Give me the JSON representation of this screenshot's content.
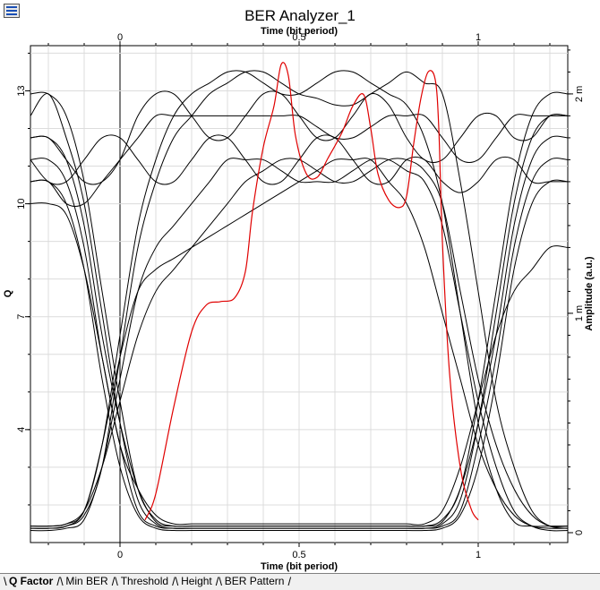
{
  "window": {
    "title": "BER Analyzer_1",
    "icon": "window-menu-icon"
  },
  "tabs": [
    {
      "label": "Q Factor",
      "active": true
    },
    {
      "label": "Min BER",
      "active": false
    },
    {
      "label": "Threshold",
      "active": false
    },
    {
      "label": "Height",
      "active": false
    },
    {
      "label": "BER Pattern",
      "active": false
    }
  ],
  "chart_data": {
    "type": "line",
    "title": "BER Analyzer_1",
    "xlabel": "Time (bit period)",
    "x2label": "Time (bit period)",
    "ylabel": "Q",
    "y2label": "Amplitude (a.u.)",
    "xlim": [
      -0.25,
      1.25
    ],
    "ylim": [
      1,
      14.2
    ],
    "y2lim": [
      -4.5e-05,
      0.00222
    ],
    "xticks": [
      0,
      0.5,
      1
    ],
    "xtick_labels": [
      "0",
      "0.5",
      "1"
    ],
    "yticks": [
      4,
      7,
      10,
      13
    ],
    "ytick_labels": [
      "4",
      "7",
      "10",
      "13"
    ],
    "y2ticks": [
      0,
      0.001,
      0.002
    ],
    "y2tick_labels": [
      "0",
      "1 m",
      "2 m"
    ],
    "grid": true,
    "series": [
      {
        "axis": "q",
        "color": "#e00000",
        "x": [
          0.07,
          0.1,
          0.15,
          0.2,
          0.24,
          0.28,
          0.32,
          0.35,
          0.37,
          0.4,
          0.43,
          0.45,
          0.47,
          0.49,
          0.52,
          0.55,
          0.58,
          0.62,
          0.65,
          0.68,
          0.7,
          0.72,
          0.75,
          0.78,
          0.8,
          0.82,
          0.84,
          0.86,
          0.88,
          0.89,
          0.9,
          0.92,
          0.95,
          0.98,
          1.0
        ],
        "y": [
          1.6,
          2.3,
          4.6,
          6.6,
          7.3,
          7.4,
          7.5,
          8.2,
          9.8,
          11.5,
          12.6,
          13.7,
          13.4,
          11.8,
          10.8,
          10.7,
          11.2,
          11.9,
          12.6,
          12.9,
          12.0,
          10.8,
          10.1,
          9.9,
          10.2,
          11.6,
          12.8,
          13.5,
          13.3,
          12.0,
          9.0,
          5.5,
          3.0,
          1.9,
          1.6
        ]
      }
    ],
    "eye_traces": {
      "axis": "amplitude",
      "color": "#000000",
      "x_grid": [
        -0.25,
        -0.2,
        -0.15,
        -0.1,
        -0.05,
        0.0,
        0.05,
        0.1,
        0.15,
        0.2,
        0.25,
        0.3,
        0.35,
        0.4,
        0.45,
        0.5,
        0.55,
        0.6,
        0.65,
        0.7,
        0.75,
        0.8,
        0.85,
        0.9,
        0.95,
        1.0,
        1.05,
        1.1,
        1.15,
        1.2,
        1.25
      ],
      "note": "",
      "values": [
        [
          0.002,
          0.002,
          0.0019,
          0.0016,
          0.0011,
          0.0006,
          0.0002,
          6e-05,
          3e-05,
          3e-05,
          3e-05,
          3e-05,
          3e-05,
          3e-05,
          3e-05,
          3e-05,
          3e-05,
          3e-05,
          3e-05,
          3e-05,
          3e-05,
          3e-05,
          3e-05,
          6e-05,
          0.0002,
          0.0006,
          0.0011,
          0.0016,
          0.0019,
          0.002,
          0.002
        ],
        [
          0.0019,
          0.002,
          0.0018,
          0.0015,
          0.001,
          0.0005,
          0.00015,
          4e-05,
          2e-05,
          2e-05,
          2e-05,
          2e-05,
          2e-05,
          2e-05,
          2e-05,
          2e-05,
          2e-05,
          2e-05,
          2e-05,
          2e-05,
          2e-05,
          2e-05,
          2e-05,
          4e-05,
          0.00015,
          0.0005,
          0.001,
          0.0015,
          0.0018,
          0.0019,
          0.0019
        ],
        [
          3e-05,
          3e-05,
          4e-05,
          0.0001,
          0.0004,
          0.0009,
          0.0014,
          0.0017,
          0.0019,
          0.002,
          0.00205,
          0.0021,
          0.0021,
          0.00205,
          0.002,
          0.002,
          0.00205,
          0.0021,
          0.0021,
          0.00205,
          0.002,
          0.00195,
          0.0018,
          0.0015,
          0.001,
          0.0005,
          0.0002,
          5e-05,
          3e-05,
          3e-05,
          3e-05
        ],
        [
          2e-05,
          2e-05,
          3e-05,
          8e-05,
          0.0003,
          0.0008,
          0.0013,
          0.0016,
          0.0018,
          0.0019,
          0.002,
          0.00205,
          0.0021,
          0.0021,
          0.00205,
          0.002,
          0.00198,
          0.00195,
          0.00195,
          0.002,
          0.00205,
          0.0021,
          0.00205,
          0.002,
          0.0016,
          0.0011,
          0.0006,
          0.0003,
          0.0001,
          3e-05,
          2e-05
        ],
        [
          0.0018,
          0.0018,
          0.0017,
          0.0016,
          0.0016,
          0.0017,
          0.0019,
          0.002,
          0.002,
          0.0019,
          0.0018,
          0.0018,
          0.0019,
          0.002,
          0.002,
          0.0019,
          0.0018,
          0.0018,
          0.0019,
          0.002,
          0.00195,
          0.0018,
          0.0017,
          0.0017,
          0.0018,
          0.0019,
          0.0019,
          0.0018,
          0.0018,
          0.0019,
          0.0019
        ],
        [
          0.0017,
          0.0016,
          0.0016,
          0.0017,
          0.0018,
          0.0018,
          0.0017,
          0.0016,
          0.0016,
          0.0017,
          0.0018,
          0.0018,
          0.0017,
          0.0016,
          0.0016,
          0.0017,
          0.0018,
          0.0018,
          0.0017,
          0.0016,
          0.0016,
          0.0017,
          0.0017,
          0.0016,
          0.00155,
          0.0016,
          0.0017,
          0.0017,
          0.0016,
          0.0016,
          0.0016
        ],
        [
          0.0017,
          0.0017,
          0.0016,
          0.0013,
          0.0008,
          0.0004,
          0.0001,
          3e-05,
          2e-05,
          2e-05,
          2e-05,
          2e-05,
          2e-05,
          2e-05,
          2e-05,
          2e-05,
          2e-05,
          2e-05,
          2e-05,
          2e-05,
          2e-05,
          2e-05,
          2e-05,
          3e-05,
          0.0001,
          0.0004,
          0.0008,
          0.0013,
          0.0016,
          0.0017,
          0.0017
        ],
        [
          0.0016,
          0.0016,
          0.0015,
          0.0012,
          0.0007,
          0.0003,
          8e-05,
          2e-05,
          1e-05,
          1e-05,
          1e-05,
          1e-05,
          1e-05,
          1e-05,
          1e-05,
          1e-05,
          1e-05,
          1e-05,
          1e-05,
          1e-05,
          1e-05,
          1e-05,
          1e-05,
          2e-05,
          8e-05,
          0.0003,
          0.0007,
          0.0012,
          0.0015,
          0.0016,
          0.0016
        ],
        [
          1e-05,
          1e-05,
          2e-05,
          6e-05,
          0.0003,
          0.0007,
          0.0011,
          0.0013,
          0.0014,
          0.0015,
          0.0016,
          0.0017,
          0.0017,
          0.0017,
          0.00165,
          0.0016,
          0.0016,
          0.0016,
          0.00165,
          0.0017,
          0.0017,
          0.00165,
          0.0016,
          0.0014,
          0.001,
          0.0006,
          0.0003,
          0.0001,
          3e-05,
          1e-05,
          1e-05
        ],
        [
          2e-05,
          2e-05,
          3e-05,
          0.0001,
          0.0004,
          0.0008,
          0.0011,
          0.0012,
          0.00125,
          0.0013,
          0.00135,
          0.0014,
          0.00145,
          0.0015,
          0.00155,
          0.0016,
          0.00165,
          0.0017,
          0.0017,
          0.0017,
          0.0016,
          0.0015,
          0.0013,
          0.001,
          0.0007,
          0.0004,
          0.0002,
          8e-05,
          3e-05,
          2e-05,
          2e-05
        ],
        [
          0.0016,
          0.0016,
          0.0015,
          0.0015,
          0.0016,
          0.0017,
          0.0018,
          0.0019,
          0.0019,
          0.0019,
          0.0019,
          0.0019,
          0.0019,
          0.0019,
          0.0019,
          0.0019,
          0.00185,
          0.0018,
          0.0018,
          0.00185,
          0.0019,
          0.0019,
          0.0019,
          0.0018,
          0.0017,
          0.0017,
          0.0018,
          0.0019,
          0.0019,
          0.0019,
          0.0019
        ],
        [
          3e-05,
          3e-05,
          4e-05,
          0.0001,
          0.0003,
          0.0006,
          0.0009,
          0.0011,
          0.0012,
          0.0013,
          0.0014,
          0.0015,
          0.0016,
          0.00165,
          0.0017,
          0.0017,
          0.00165,
          0.0016,
          0.0016,
          0.00165,
          0.0017,
          0.0017,
          0.00165,
          0.0015,
          0.0011,
          0.0007,
          0.0004,
          0.0002,
          8e-05,
          3e-05,
          3e-05
        ],
        [
          0.0015,
          0.0015,
          0.00145,
          0.0012,
          0.0008,
          0.0004,
          0.0002,
          8e-05,
          4e-05,
          4e-05,
          4e-05,
          4e-05,
          4e-05,
          4e-05,
          4e-05,
          4e-05,
          4e-05,
          4e-05,
          4e-05,
          4e-05,
          4e-05,
          4e-05,
          4e-05,
          0.0001,
          0.0003,
          0.0006,
          0.0009,
          0.0011,
          0.0012,
          0.0013,
          0.0013
        ],
        [
          0.0018,
          0.0018,
          0.0017,
          0.0014,
          0.0009,
          0.0005,
          0.0002,
          5e-05,
          3e-05,
          3e-05,
          3e-05,
          3e-05,
          3e-05,
          3e-05,
          3e-05,
          3e-05,
          3e-05,
          3e-05,
          3e-05,
          3e-05,
          3e-05,
          3e-05,
          3e-05,
          5e-05,
          0.0002,
          0.0005,
          0.0009,
          0.0014,
          0.0017,
          0.0018,
          0.0018
        ]
      ]
    }
  }
}
